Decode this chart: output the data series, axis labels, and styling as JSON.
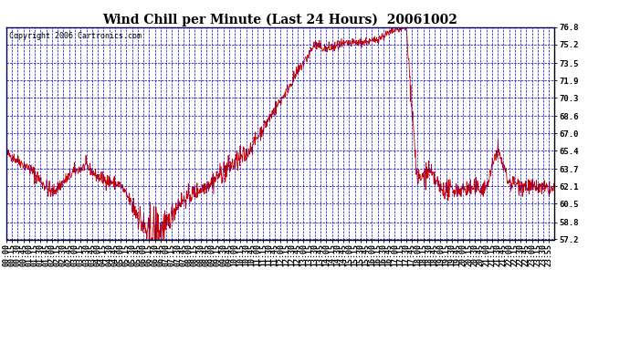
{
  "title": "Wind Chill per Minute (Last 24 Hours)  20061002",
  "copyright": "Copyright 2006 Cartronics.com",
  "ylabel_right": [
    "76.8",
    "75.2",
    "73.5",
    "71.9",
    "70.3",
    "68.6",
    "67.0",
    "65.4",
    "63.7",
    "62.1",
    "60.5",
    "58.8",
    "57.2"
  ],
  "ymin": 57.2,
  "ymax": 76.8,
  "line_color": "#cc0000",
  "bg_color": "#ffffff",
  "plot_bg_color": "#ffffff",
  "grid_color": "#0000cc",
  "title_fontsize": 10,
  "copyright_fontsize": 6,
  "tick_fontsize": 6.5,
  "xtick_labels": [
    "00:00",
    "00:15",
    "00:30",
    "00:45",
    "01:00",
    "01:15",
    "01:30",
    "01:45",
    "02:00",
    "02:15",
    "02:30",
    "02:45",
    "03:00",
    "03:15",
    "03:30",
    "03:45",
    "04:00",
    "04:15",
    "04:30",
    "04:45",
    "05:00",
    "05:15",
    "05:30",
    "05:45",
    "06:00",
    "06:15",
    "06:30",
    "06:45",
    "07:00",
    "07:15",
    "07:30",
    "07:45",
    "08:00",
    "08:15",
    "08:30",
    "08:45",
    "09:00",
    "09:15",
    "09:30",
    "09:45",
    "10:00",
    "10:15",
    "10:30",
    "10:45",
    "11:00",
    "11:15",
    "11:30",
    "11:45",
    "12:00",
    "12:15",
    "12:30",
    "12:45",
    "13:00",
    "13:15",
    "13:30",
    "13:45",
    "14:00",
    "14:15",
    "14:30",
    "14:45",
    "15:00",
    "15:15",
    "15:30",
    "15:45",
    "16:00",
    "16:15",
    "16:30",
    "16:45",
    "17:00",
    "17:15",
    "17:30",
    "17:45",
    "18:00",
    "18:15",
    "18:30",
    "18:45",
    "19:00",
    "19:15",
    "19:30",
    "19:45",
    "20:00",
    "20:15",
    "20:30",
    "20:45",
    "21:00",
    "21:15",
    "21:30",
    "21:45",
    "22:00",
    "22:15",
    "22:30",
    "22:45",
    "23:00",
    "23:15",
    "23:30",
    "23:55"
  ]
}
